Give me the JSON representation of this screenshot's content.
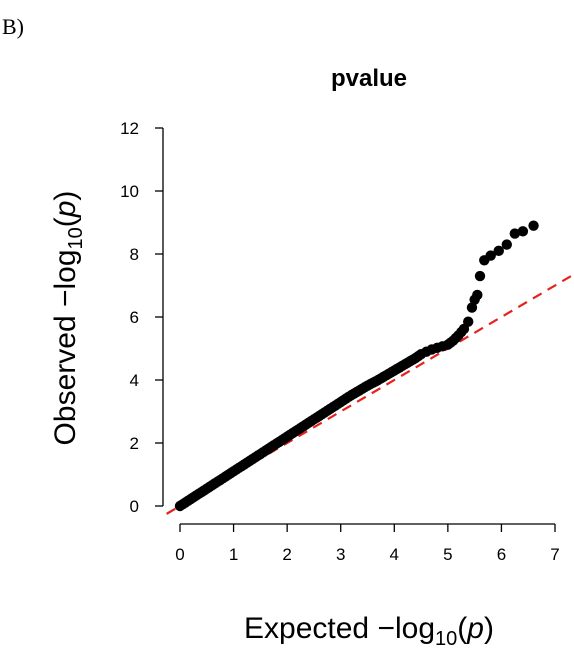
{
  "panel_label": "B)",
  "chart_data": {
    "type": "scatter",
    "title": "pvalue",
    "xlabel": {
      "prefix": "Expected  −log",
      "sub": "10",
      "paren_open": "(",
      "var": "p",
      "paren_close": ")"
    },
    "ylabel": {
      "prefix": "Observed  −log",
      "sub": "10",
      "paren_open": "(",
      "var": "p",
      "paren_close": ")"
    },
    "xlim": [
      -0.25,
      7.3
    ],
    "ylim": [
      -0.3,
      12.5
    ],
    "x_ticks": [
      0,
      1,
      2,
      3,
      4,
      5,
      6,
      7
    ],
    "y_ticks": [
      0,
      2,
      4,
      6,
      8,
      10,
      12
    ],
    "x_tick_labels": [
      "0",
      "1",
      "2",
      "3",
      "4",
      "5",
      "6",
      "7"
    ],
    "y_tick_labels": [
      "0",
      "2",
      "4",
      "6",
      "8",
      "10",
      "12"
    ],
    "grid": false,
    "legend": "none",
    "series": [
      {
        "color": "#000000",
        "points": [
          [
            0.0,
            0.0
          ],
          [
            0.1,
            0.11
          ],
          [
            0.2,
            0.22
          ],
          [
            0.3,
            0.33
          ],
          [
            0.4,
            0.44
          ],
          [
            0.5,
            0.55
          ],
          [
            0.6,
            0.66
          ],
          [
            0.7,
            0.77
          ],
          [
            0.8,
            0.88
          ],
          [
            0.9,
            0.99
          ],
          [
            1.0,
            1.1
          ],
          [
            1.1,
            1.21
          ],
          [
            1.2,
            1.32
          ],
          [
            1.3,
            1.43
          ],
          [
            1.4,
            1.54
          ],
          [
            1.5,
            1.65
          ],
          [
            1.6,
            1.76
          ],
          [
            1.7,
            1.87
          ],
          [
            1.8,
            1.98
          ],
          [
            1.9,
            2.09
          ],
          [
            2.0,
            2.2
          ],
          [
            2.1,
            2.31
          ],
          [
            2.2,
            2.42
          ],
          [
            2.3,
            2.53
          ],
          [
            2.4,
            2.64
          ],
          [
            2.5,
            2.75
          ],
          [
            2.6,
            2.86
          ],
          [
            2.7,
            2.97
          ],
          [
            2.8,
            3.08
          ],
          [
            2.9,
            3.19
          ],
          [
            3.0,
            3.3
          ],
          [
            3.1,
            3.41
          ],
          [
            3.2,
            3.52
          ],
          [
            3.3,
            3.62
          ],
          [
            3.4,
            3.72
          ],
          [
            3.5,
            3.82
          ],
          [
            3.6,
            3.91
          ],
          [
            3.7,
            4.0
          ],
          [
            3.8,
            4.1
          ],
          [
            3.9,
            4.2
          ],
          [
            4.0,
            4.3
          ],
          [
            4.1,
            4.4
          ],
          [
            4.2,
            4.5
          ],
          [
            4.3,
            4.6
          ],
          [
            4.4,
            4.7
          ],
          [
            4.5,
            4.82
          ],
          [
            4.6,
            4.9
          ],
          [
            4.7,
            4.97
          ],
          [
            4.8,
            5.02
          ],
          [
            4.9,
            5.07
          ],
          [
            5.0,
            5.12
          ],
          [
            5.1,
            5.25
          ],
          [
            5.2,
            5.42
          ],
          [
            5.3,
            5.62
          ],
          [
            5.38,
            5.85
          ],
          [
            5.45,
            6.3
          ],
          [
            5.5,
            6.55
          ],
          [
            5.55,
            6.7
          ],
          [
            5.6,
            7.3
          ],
          [
            5.68,
            7.8
          ],
          [
            5.8,
            7.95
          ],
          [
            5.95,
            8.1
          ],
          [
            6.1,
            8.3
          ],
          [
            6.25,
            8.65
          ],
          [
            6.4,
            8.72
          ],
          [
            6.6,
            8.9
          ]
        ]
      }
    ],
    "reference_line": {
      "slope": 1,
      "intercept": 0,
      "color": "#e8211f",
      "style": "dashed"
    }
  }
}
